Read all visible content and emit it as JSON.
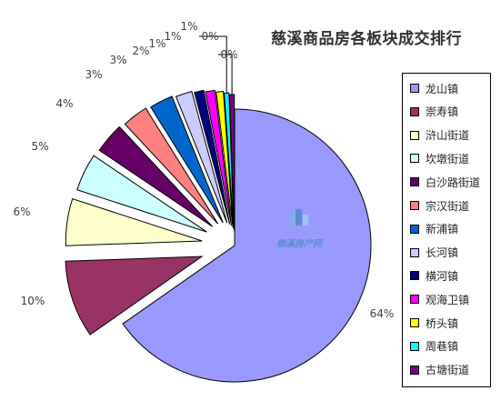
{
  "chart_data": {
    "type": "pie",
    "title": "慈溪商品房各板块成交排行",
    "labels": [
      "龙山镇",
      "崇寿镇",
      "浒山街道",
      "坎墩街道",
      "白沙路街道",
      "宗汉街道",
      "新浦镇",
      "长河镇",
      "横河镇",
      "观海卫镇",
      "桥头镇",
      "周巷镇",
      "古塘街道"
    ],
    "values": [
      64,
      10,
      6,
      5,
      4,
      3,
      3,
      2,
      1,
      1,
      1,
      0,
      0
    ],
    "value_labels": [
      "64%",
      "10%",
      "6%",
      "5%",
      "4%",
      "3%",
      "3%",
      "2%",
      "1%",
      "1%",
      "1%",
      "0%",
      "0%"
    ],
    "colors": [
      "#9999ff",
      "#993366",
      "#ffffcc",
      "#ccffff",
      "#660066",
      "#ff8080",
      "#0066cc",
      "#ccccff",
      "#000080",
      "#ff00ff",
      "#ffff00",
      "#00ffff",
      "#800080"
    ],
    "legend_position": "right",
    "exploded": true
  },
  "watermark": {
    "site": "house.cxsp.com",
    "name": "慈溪房产网"
  }
}
